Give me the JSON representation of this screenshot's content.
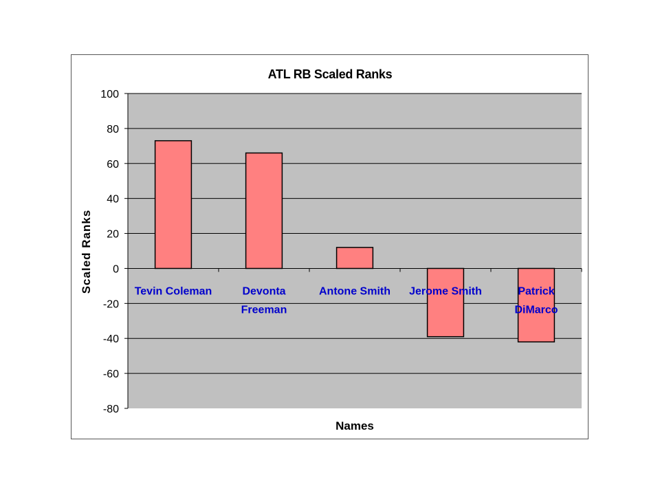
{
  "chart_data": {
    "type": "bar",
    "title": "ATL RB Scaled Ranks",
    "xlabel": "Names",
    "ylabel": "Scaled Ranks",
    "categories": [
      "Tevin Coleman",
      "Devonta Freeman",
      "Antone Smith",
      "Jerome Smith",
      "Patrick DiMarco"
    ],
    "category_label_lines": [
      [
        "Tevin Coleman"
      ],
      [
        "Devonta",
        "Freeman"
      ],
      [
        "Antone Smith"
      ],
      [
        "Jerome Smith"
      ],
      [
        "Patrick",
        "DiMarco"
      ]
    ],
    "values": [
      73,
      66,
      12,
      -39,
      -42
    ],
    "ylim": [
      -80,
      100
    ],
    "yticks": [
      100,
      80,
      60,
      40,
      20,
      0,
      -20,
      -40,
      -60,
      -80
    ],
    "grid": true,
    "legend": "none",
    "colors": {
      "bar_fill": "#ff8080",
      "bar_stroke": "#000000",
      "plot_background": "#c0c0c0",
      "gridline": "#000000",
      "category_label": "#0000cc"
    }
  }
}
